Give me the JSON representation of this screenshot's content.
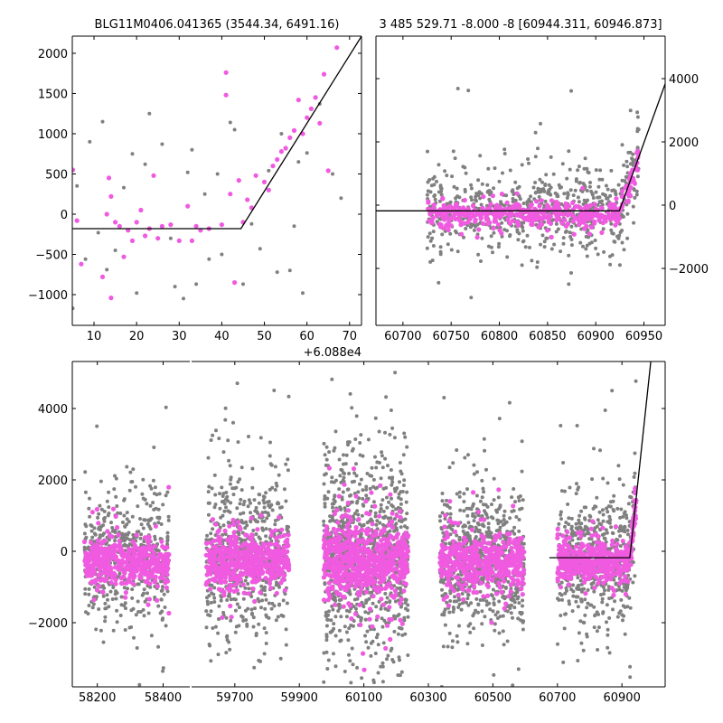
{
  "chart_data": {
    "type": "scatter",
    "colors": {
      "pink": "#f05ae0",
      "gray": "#808080",
      "model": "#000000"
    },
    "model": {
      "t_break": 60924.5,
      "baseline": -180,
      "slope_per_day": 84.5
    },
    "panels": [
      {
        "id": "top-left",
        "title": "BLG11M0406.041365 (3544.34, 6491.16)",
        "x_offset": 60880,
        "offset_label": "+6.088e4",
        "xlim": [
          4.9,
          72.8
        ],
        "ylim": [
          -1382,
          2213
        ],
        "xticks": [
          10,
          20,
          30,
          40,
          50,
          60,
          70
        ],
        "yticks": [
          -1000,
          -500,
          0,
          500,
          1000,
          1500,
          2000
        ],
        "ytick_side": "left",
        "model_start": 4.9,
        "points_pink": [
          [
            5,
            550
          ],
          [
            6,
            -80
          ],
          [
            7,
            -620
          ],
          [
            12,
            -780
          ],
          [
            13,
            0
          ],
          [
            13.5,
            450
          ],
          [
            14,
            -1040
          ],
          [
            14,
            220
          ],
          [
            15,
            -100
          ],
          [
            16,
            -150
          ],
          [
            17,
            -530
          ],
          [
            18,
            -200
          ],
          [
            19,
            -330
          ],
          [
            20,
            -100
          ],
          [
            21,
            50
          ],
          [
            22,
            -270
          ],
          [
            23,
            -180
          ],
          [
            24,
            480
          ],
          [
            25,
            -300
          ],
          [
            26,
            -150
          ],
          [
            28,
            -130
          ],
          [
            30,
            -330
          ],
          [
            32,
            100
          ],
          [
            33,
            -330
          ],
          [
            34,
            -150
          ],
          [
            35,
            -200
          ],
          [
            37,
            -180
          ],
          [
            40,
            -130
          ],
          [
            41,
            1760
          ],
          [
            41,
            1480
          ],
          [
            42,
            250
          ],
          [
            43,
            -850
          ],
          [
            44,
            420
          ],
          [
            45,
            -100
          ],
          [
            46,
            180
          ],
          [
            47,
            80
          ],
          [
            48,
            480
          ],
          [
            50,
            400
          ],
          [
            51,
            300
          ],
          [
            52,
            600
          ],
          [
            53,
            680
          ],
          [
            54,
            780
          ],
          [
            55,
            820
          ],
          [
            56,
            950
          ],
          [
            57,
            1040
          ],
          [
            58,
            1420
          ],
          [
            59,
            1000
          ],
          [
            60,
            1200
          ],
          [
            61,
            1310
          ],
          [
            62,
            1450
          ],
          [
            63,
            1130
          ],
          [
            64,
            1740
          ],
          [
            65,
            540
          ],
          [
            67,
            2070
          ]
        ],
        "points_gray": [
          [
            5,
            -1170
          ],
          [
            6,
            350
          ],
          [
            8,
            -560
          ],
          [
            9,
            900
          ],
          [
            11,
            -230
          ],
          [
            12,
            1150
          ],
          [
            13,
            -690
          ],
          [
            15,
            -450
          ],
          [
            17,
            330
          ],
          [
            19,
            750
          ],
          [
            20,
            -980
          ],
          [
            22,
            620
          ],
          [
            23,
            1250
          ],
          [
            26,
            870
          ],
          [
            28,
            -300
          ],
          [
            29,
            -900
          ],
          [
            31,
            -1050
          ],
          [
            32,
            520
          ],
          [
            33,
            800
          ],
          [
            34,
            -870
          ],
          [
            36,
            250
          ],
          [
            37,
            -560
          ],
          [
            39,
            500
          ],
          [
            40,
            -500
          ],
          [
            42,
            1140
          ],
          [
            43,
            1050
          ],
          [
            45,
            -870
          ],
          [
            47,
            -120
          ],
          [
            49,
            -430
          ],
          [
            51,
            540
          ],
          [
            53,
            -720
          ],
          [
            54,
            1000
          ],
          [
            56,
            -700
          ],
          [
            57,
            -150
          ],
          [
            58,
            650
          ],
          [
            59,
            -980
          ],
          [
            60,
            760
          ],
          [
            63,
            1370
          ],
          [
            66,
            500
          ],
          [
            68,
            200
          ]
        ]
      },
      {
        "id": "top-right",
        "title": "3 485 529.71 -8.000 -8 [60944.311, 60946.873]",
        "xlim": [
          60672,
          60972
        ],
        "ylim": [
          -3800,
          5343
        ],
        "xticks": [
          60700,
          60750,
          60800,
          60850,
          60900,
          60950
        ],
        "yticks": [
          -2000,
          0,
          2000,
          4000
        ],
        "ytick_side": "right",
        "model_start": 60672,
        "seasons": [
          {
            "t": [
              60725,
              60945
            ],
            "n_gray": 650,
            "sd_gray": 650,
            "n_pink": 420,
            "sd_pink": 200
          }
        ]
      },
      {
        "id": "bottom",
        "xlim_left": [
          58124,
          58481
        ],
        "xlim_right": [
          59566,
          61034
        ],
        "ylim": [
          -3797,
          5316
        ],
        "xticks_left": [
          58200,
          58400
        ],
        "xticks_right": [
          59700,
          59900,
          60100,
          60300,
          60500,
          60700,
          60900
        ],
        "yticks": [
          -2000,
          0,
          2000,
          4000
        ],
        "ytick_side": "left",
        "model_start": 60675,
        "seasons": [
          {
            "t": [
              58161,
              58418
            ],
            "n_gray": 500,
            "sd_gray": 900,
            "n_pink": 450,
            "sd_pink": 300
          },
          {
            "t": [
              59611,
              59868
            ],
            "n_gray": 650,
            "sd_gray": 1000,
            "n_pink": 500,
            "sd_pink": 350
          },
          {
            "t": [
              59975,
              60238
            ],
            "n_gray": 900,
            "sd_gray": 1300,
            "n_pink": 650,
            "sd_pink": 500
          },
          {
            "t": [
              60336,
              60597
            ],
            "n_gray": 650,
            "sd_gray": 1000,
            "n_pink": 500,
            "sd_pink": 380
          },
          {
            "t": [
              60700,
              60945
            ],
            "n_gray": 550,
            "sd_gray": 850,
            "n_pink": 420,
            "sd_pink": 260
          }
        ]
      }
    ]
  }
}
